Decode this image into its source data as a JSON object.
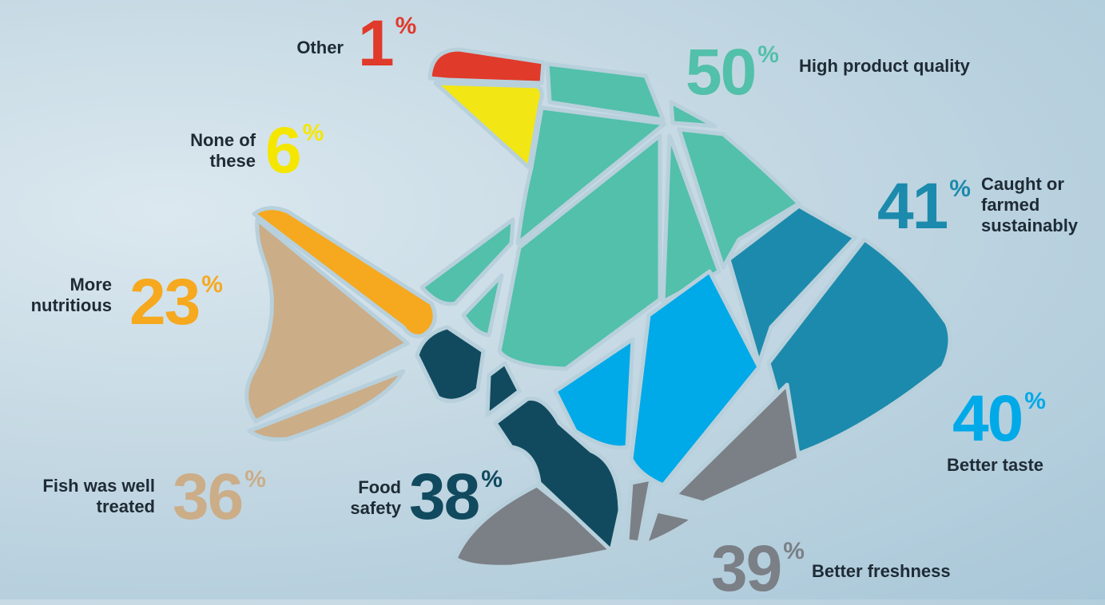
{
  "colors": {
    "other": "#e03a2a",
    "none": "#f2e615",
    "quality": "#52c0aa",
    "sustainable": "#1c8aac",
    "taste": "#00a9e8",
    "freshness": "#7b7f86",
    "safety": "#114a5f",
    "nutritious": "#f6a81f",
    "treated": "#cbad88"
  },
  "chart_data": {
    "type": "pie",
    "categories": [
      "High product quality",
      "Caught or farmed sustainably",
      "Better taste",
      "Better freshness",
      "Food safety",
      "Fish was well treated",
      "More nutritious",
      "None of these",
      "Other"
    ],
    "values": [
      50,
      41,
      40,
      39,
      38,
      36,
      23,
      6,
      1
    ],
    "unit": "%"
  },
  "labels": {
    "other": {
      "text": "Other",
      "value": "1",
      "pct": "%"
    },
    "none": {
      "line1": "None of",
      "line2": "these",
      "value": "6",
      "pct": "%"
    },
    "quality": {
      "text": "High product quality",
      "value": "50",
      "pct": "%"
    },
    "sustainable": {
      "line1": "Caught or",
      "line2": "farmed",
      "line3": "sustainably",
      "value": "41",
      "pct": "%"
    },
    "taste": {
      "text": "Better taste",
      "value": "40",
      "pct": "%"
    },
    "freshness": {
      "text": "Better freshness",
      "value": "39",
      "pct": "%"
    },
    "safety": {
      "line1": "Food",
      "line2": "safety",
      "value": "38",
      "pct": "%"
    },
    "treated": {
      "line1": "Fish was well",
      "line2": "treated",
      "value": "36",
      "pct": "%"
    },
    "nutritious": {
      "line1": "More",
      "line2": "nutritious",
      "value": "23",
      "pct": "%"
    }
  }
}
